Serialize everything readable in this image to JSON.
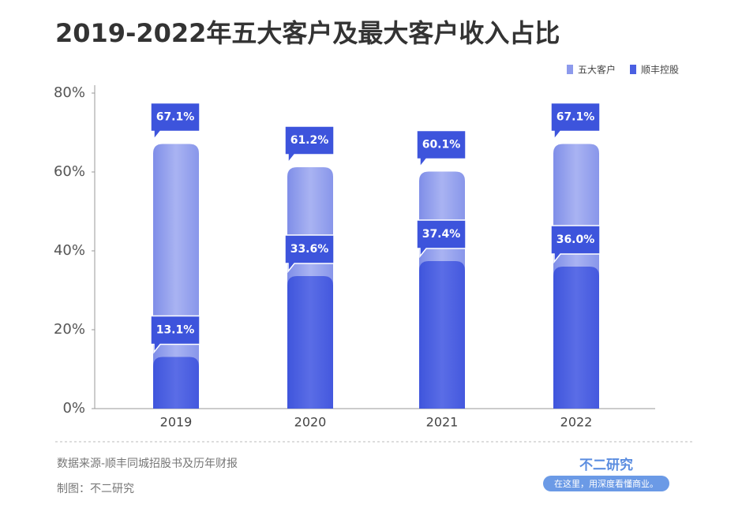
{
  "chart_data": {
    "type": "bar",
    "title": "2019-2022年五大客户及最大客户收入占比",
    "categories": [
      "2019",
      "2020",
      "2021",
      "2022"
    ],
    "series": [
      {
        "name": "五大客户",
        "color": "#8d9aec",
        "values": [
          67.1,
          61.2,
          60.1,
          67.1
        ],
        "value_labels": [
          "67.1%",
          "61.2%",
          "60.1%",
          "67.1%"
        ]
      },
      {
        "name": "顺丰控股",
        "color": "#4a5fe2",
        "values": [
          13.1,
          33.6,
          37.4,
          36.0
        ],
        "value_labels": [
          "13.1%",
          "33.6%",
          "37.4%",
          "36.0%"
        ]
      }
    ],
    "ylim": [
      0,
      80
    ],
    "yticks": [
      {
        "value": 0,
        "label": "0%"
      },
      {
        "value": 20,
        "label": "20%"
      },
      {
        "value": 40,
        "label": "40%"
      },
      {
        "value": 60,
        "label": "60%"
      },
      {
        "value": 80,
        "label": "80%"
      }
    ],
    "legend": "top-right",
    "source": "数据来源-顺丰同城招股书及历年财报",
    "credit": "制图：不二研究",
    "brand": "不二研究",
    "slogan": "在这里，用深度看懂商业。"
  }
}
